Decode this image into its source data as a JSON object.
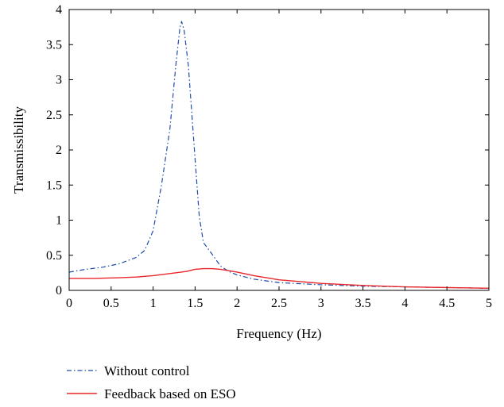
{
  "chart_data": {
    "type": "line",
    "title": "",
    "xlabel": "Frequency (Hz)",
    "ylabel": "Transmissibility",
    "xlim": [
      0,
      5
    ],
    "ylim": [
      0,
      4
    ],
    "x_ticks": [
      "0",
      "0.5",
      "1",
      "1.5",
      "2",
      "2.5",
      "3",
      "3.5",
      "4",
      "4.5",
      "5"
    ],
    "y_ticks": [
      "0",
      "0.5",
      "1",
      "1.5",
      "2",
      "2.5",
      "3",
      "3.5",
      "4"
    ],
    "grid": false,
    "legend_placement": "bottom-left, below plot",
    "series": [
      {
        "name": "Without control",
        "color": "#1f4ea8",
        "style": "dash-dot",
        "points": [
          [
            0,
            0.26
          ],
          [
            0.2,
            0.3
          ],
          [
            0.4,
            0.33
          ],
          [
            0.6,
            0.38
          ],
          [
            0.8,
            0.47
          ],
          [
            0.9,
            0.57
          ],
          [
            1.0,
            0.85
          ],
          [
            1.1,
            1.5
          ],
          [
            1.2,
            2.3
          ],
          [
            1.27,
            3.2
          ],
          [
            1.32,
            3.75
          ],
          [
            1.34,
            3.83
          ],
          [
            1.37,
            3.7
          ],
          [
            1.42,
            3.2
          ],
          [
            1.48,
            2.2
          ],
          [
            1.55,
            1.05
          ],
          [
            1.6,
            0.68
          ],
          [
            1.7,
            0.52
          ],
          [
            1.8,
            0.35
          ],
          [
            1.9,
            0.27
          ],
          [
            2.0,
            0.22
          ],
          [
            2.2,
            0.16
          ],
          [
            2.5,
            0.11
          ],
          [
            3.0,
            0.08
          ],
          [
            3.5,
            0.06
          ],
          [
            4.0,
            0.05
          ],
          [
            4.5,
            0.04
          ],
          [
            5.0,
            0.03
          ]
        ]
      },
      {
        "name": "Feedback based on ESO",
        "color": "#e8262b",
        "style": "solid",
        "points": [
          [
            0,
            0.17
          ],
          [
            0.3,
            0.17
          ],
          [
            0.6,
            0.18
          ],
          [
            0.8,
            0.19
          ],
          [
            1.0,
            0.21
          ],
          [
            1.2,
            0.24
          ],
          [
            1.4,
            0.27
          ],
          [
            1.5,
            0.3
          ],
          [
            1.6,
            0.31
          ],
          [
            1.7,
            0.31
          ],
          [
            1.8,
            0.3
          ],
          [
            2.0,
            0.26
          ],
          [
            2.2,
            0.21
          ],
          [
            2.5,
            0.15
          ],
          [
            3.0,
            0.1
          ],
          [
            3.5,
            0.07
          ],
          [
            4.0,
            0.05
          ],
          [
            4.5,
            0.04
          ],
          [
            5.0,
            0.03
          ]
        ]
      }
    ]
  }
}
